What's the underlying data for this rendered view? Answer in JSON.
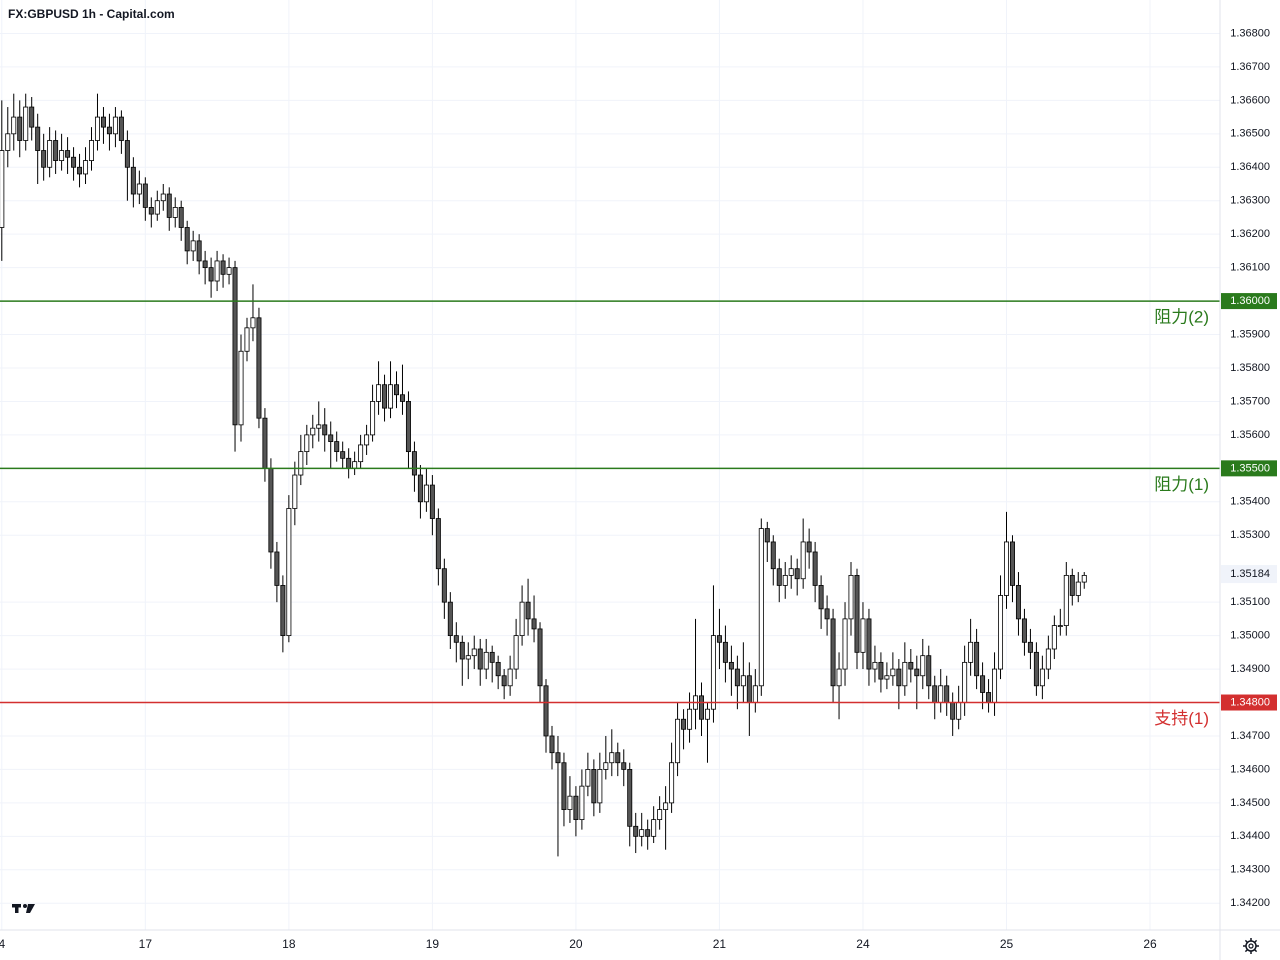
{
  "chart_data": {
    "type": "candlestick",
    "title": "FX:GBPUSD 1h - Capital.com",
    "up_color": "#ffffff",
    "down_color": "#555555",
    "wick_color": "#000000",
    "grid": true,
    "ylim": [
      1.3412,
      1.369
    ],
    "yticks": [
      {
        "value": 1.368,
        "label": "1.36800"
      },
      {
        "value": 1.367,
        "label": "1.36700"
      },
      {
        "value": 1.366,
        "label": "1.36600"
      },
      {
        "value": 1.365,
        "label": "1.36500"
      },
      {
        "value": 1.364,
        "label": "1.36400"
      },
      {
        "value": 1.363,
        "label": "1.36300"
      },
      {
        "value": 1.362,
        "label": "1.36200"
      },
      {
        "value": 1.361,
        "label": "1.36100"
      },
      {
        "value": 1.359,
        "label": "1.35900"
      },
      {
        "value": 1.358,
        "label": "1.35800"
      },
      {
        "value": 1.357,
        "label": "1.35700"
      },
      {
        "value": 1.356,
        "label": "1.35600"
      },
      {
        "value": 1.354,
        "label": "1.35400"
      },
      {
        "value": 1.353,
        "label": "1.35300"
      },
      {
        "value": 1.351,
        "label": "1.35100"
      },
      {
        "value": 1.35,
        "label": "1.35000"
      },
      {
        "value": 1.349,
        "label": "1.34900"
      },
      {
        "value": 1.347,
        "label": "1.34700"
      },
      {
        "value": 1.346,
        "label": "1.34600"
      },
      {
        "value": 1.345,
        "label": "1.34500"
      },
      {
        "value": 1.344,
        "label": "1.34400"
      },
      {
        "value": 1.343,
        "label": "1.34300"
      },
      {
        "value": 1.342,
        "label": "1.34200"
      }
    ],
    "xlim": [
      -0.3,
      203.7
    ],
    "xticks": [
      {
        "value": 0,
        "label": "4"
      },
      {
        "value": 24,
        "label": "17"
      },
      {
        "value": 48,
        "label": "18"
      },
      {
        "value": 72,
        "label": "19"
      },
      {
        "value": 96,
        "label": "20"
      },
      {
        "value": 120,
        "label": "21"
      },
      {
        "value": 144,
        "label": "24"
      },
      {
        "value": 168,
        "label": "25"
      },
      {
        "value": 192,
        "label": "26"
      }
    ],
    "levels": [
      {
        "value": 1.36,
        "price_label": "1.36000",
        "label": "阻力(2)",
        "color": "#2a7a1c"
      },
      {
        "value": 1.355,
        "price_label": "1.35500",
        "label": "阻力(1)",
        "color": "#2a7a1c"
      },
      {
        "value": 1.348,
        "price_label": "1.34800",
        "label": "支持(1)",
        "color": "#d32f2f"
      }
    ],
    "last_price": 1.35184,
    "ohlc": [
      [
        1.3622,
        1.366,
        1.3612,
        1.3645
      ],
      [
        1.3645,
        1.3658,
        1.364,
        1.365
      ],
      [
        1.365,
        1.3662,
        1.3645,
        1.3655
      ],
      [
        1.3655,
        1.366,
        1.3643,
        1.3648
      ],
      [
        1.3648,
        1.3662,
        1.3645,
        1.3658
      ],
      [
        1.3658,
        1.3661,
        1.3648,
        1.3652
      ],
      [
        1.3652,
        1.3656,
        1.3635,
        1.3645
      ],
      [
        1.3645,
        1.365,
        1.3636,
        1.364
      ],
      [
        1.364,
        1.3652,
        1.3637,
        1.3648
      ],
      [
        1.3648,
        1.3651,
        1.3638,
        1.3642
      ],
      [
        1.3642,
        1.365,
        1.3639,
        1.3645
      ],
      [
        1.3645,
        1.3649,
        1.3638,
        1.3643
      ],
      [
        1.3643,
        1.3646,
        1.3636,
        1.364
      ],
      [
        1.364,
        1.3644,
        1.3634,
        1.3638
      ],
      [
        1.3638,
        1.3646,
        1.3635,
        1.3642
      ],
      [
        1.3642,
        1.3652,
        1.3639,
        1.3648
      ],
      [
        1.3648,
        1.3662,
        1.3645,
        1.3655
      ],
      [
        1.3655,
        1.3658,
        1.3647,
        1.3652
      ],
      [
        1.3652,
        1.3656,
        1.3645,
        1.365
      ],
      [
        1.365,
        1.3658,
        1.3646,
        1.3655
      ],
      [
        1.3655,
        1.3657,
        1.3644,
        1.3648
      ],
      [
        1.3648,
        1.3651,
        1.363,
        1.364
      ],
      [
        1.364,
        1.3643,
        1.3628,
        1.3632
      ],
      [
        1.3632,
        1.3639,
        1.3629,
        1.3635
      ],
      [
        1.3635,
        1.3637,
        1.3624,
        1.3628
      ],
      [
        1.3628,
        1.3631,
        1.3622,
        1.3626
      ],
      [
        1.3626,
        1.3633,
        1.3624,
        1.363
      ],
      [
        1.363,
        1.3635,
        1.3627,
        1.3632
      ],
      [
        1.3632,
        1.3634,
        1.3621,
        1.3625
      ],
      [
        1.3625,
        1.3631,
        1.3622,
        1.3628
      ],
      [
        1.3628,
        1.363,
        1.3618,
        1.3622
      ],
      [
        1.3622,
        1.3624,
        1.3611,
        1.3615
      ],
      [
        1.3615,
        1.3621,
        1.3612,
        1.3618
      ],
      [
        1.3618,
        1.362,
        1.3608,
        1.3612
      ],
      [
        1.3612,
        1.3615,
        1.3605,
        1.361
      ],
      [
        1.361,
        1.3613,
        1.3601,
        1.3606
      ],
      [
        1.3606,
        1.3615,
        1.3603,
        1.3612
      ],
      [
        1.3612,
        1.3614,
        1.3604,
        1.3608
      ],
      [
        1.3608,
        1.3613,
        1.3605,
        1.361
      ],
      [
        1.361,
        1.3612,
        1.3555,
        1.3563
      ],
      [
        1.3563,
        1.359,
        1.3558,
        1.3585
      ],
      [
        1.3585,
        1.3595,
        1.3582,
        1.3592
      ],
      [
        1.3592,
        1.3605,
        1.3588,
        1.3595
      ],
      [
        1.3595,
        1.3598,
        1.3562,
        1.3565
      ],
      [
        1.3565,
        1.3568,
        1.3546,
        1.355
      ],
      [
        1.355,
        1.3553,
        1.352,
        1.3525
      ],
      [
        1.3525,
        1.3528,
        1.351,
        1.3515
      ],
      [
        1.3515,
        1.3518,
        1.3495,
        1.35
      ],
      [
        1.35,
        1.3542,
        1.3498,
        1.3538
      ],
      [
        1.3538,
        1.3552,
        1.3533,
        1.3548
      ],
      [
        1.3548,
        1.356,
        1.3545,
        1.3555
      ],
      [
        1.3555,
        1.3563,
        1.3551,
        1.356
      ],
      [
        1.356,
        1.3566,
        1.3556,
        1.3562
      ],
      [
        1.3562,
        1.357,
        1.3558,
        1.3563
      ],
      [
        1.3563,
        1.3568,
        1.3555,
        1.356
      ],
      [
        1.356,
        1.3564,
        1.355,
        1.3558
      ],
      [
        1.3558,
        1.3561,
        1.3552,
        1.3555
      ],
      [
        1.3555,
        1.3558,
        1.355,
        1.3553
      ],
      [
        1.3553,
        1.3556,
        1.3547,
        1.355
      ],
      [
        1.355,
        1.3555,
        1.3548,
        1.3552
      ],
      [
        1.3552,
        1.356,
        1.355,
        1.3557
      ],
      [
        1.3557,
        1.3563,
        1.3554,
        1.356
      ],
      [
        1.356,
        1.3575,
        1.3558,
        1.357
      ],
      [
        1.357,
        1.3582,
        1.3566,
        1.3575
      ],
      [
        1.3575,
        1.3578,
        1.3564,
        1.3568
      ],
      [
        1.3568,
        1.3582,
        1.3565,
        1.3575
      ],
      [
        1.3575,
        1.3579,
        1.3568,
        1.3572
      ],
      [
        1.3572,
        1.3581,
        1.3566,
        1.357
      ],
      [
        1.357,
        1.3573,
        1.355,
        1.3555
      ],
      [
        1.3555,
        1.3558,
        1.3543,
        1.3548
      ],
      [
        1.3548,
        1.3551,
        1.3535,
        1.354
      ],
      [
        1.354,
        1.355,
        1.3537,
        1.3545
      ],
      [
        1.3545,
        1.3548,
        1.353,
        1.3535
      ],
      [
        1.3535,
        1.3538,
        1.3515,
        1.352
      ],
      [
        1.352,
        1.3523,
        1.3505,
        1.351
      ],
      [
        1.351,
        1.3513,
        1.3496,
        1.35
      ],
      [
        1.35,
        1.3504,
        1.3492,
        1.3498
      ],
      [
        1.3498,
        1.35,
        1.3485,
        1.3493
      ],
      [
        1.3493,
        1.3498,
        1.3487,
        1.3494
      ],
      [
        1.3494,
        1.35,
        1.349,
        1.3496
      ],
      [
        1.3496,
        1.3499,
        1.3485,
        1.349
      ],
      [
        1.349,
        1.3499,
        1.3487,
        1.3495
      ],
      [
        1.3495,
        1.3497,
        1.3486,
        1.3492
      ],
      [
        1.3492,
        1.3494,
        1.3484,
        1.3488
      ],
      [
        1.3488,
        1.349,
        1.3481,
        1.3485
      ],
      [
        1.3485,
        1.3494,
        1.3482,
        1.349
      ],
      [
        1.349,
        1.3505,
        1.3487,
        1.35
      ],
      [
        1.35,
        1.3515,
        1.3497,
        1.351
      ],
      [
        1.351,
        1.3517,
        1.35,
        1.3505
      ],
      [
        1.3505,
        1.3512,
        1.3498,
        1.3502
      ],
      [
        1.3502,
        1.3504,
        1.348,
        1.3485
      ],
      [
        1.3485,
        1.3487,
        1.3465,
        1.347
      ],
      [
        1.347,
        1.3473,
        1.346,
        1.3465
      ],
      [
        1.3465,
        1.347,
        1.3434,
        1.3462
      ],
      [
        1.3462,
        1.3465,
        1.3443,
        1.3448
      ],
      [
        1.3448,
        1.3458,
        1.3444,
        1.3452
      ],
      [
        1.3452,
        1.3455,
        1.344,
        1.3445
      ],
      [
        1.3445,
        1.346,
        1.3442,
        1.3455
      ],
      [
        1.3455,
        1.3465,
        1.3452,
        1.346
      ],
      [
        1.346,
        1.3463,
        1.3446,
        1.345
      ],
      [
        1.345,
        1.3465,
        1.3447,
        1.346
      ],
      [
        1.346,
        1.347,
        1.3457,
        1.3462
      ],
      [
        1.3462,
        1.3472,
        1.3458,
        1.3465
      ],
      [
        1.3465,
        1.3468,
        1.3458,
        1.3462
      ],
      [
        1.3462,
        1.3466,
        1.3455,
        1.346
      ],
      [
        1.346,
        1.3462,
        1.3437,
        1.3443
      ],
      [
        1.3443,
        1.3447,
        1.3435,
        1.344
      ],
      [
        1.344,
        1.3447,
        1.3437,
        1.3442
      ],
      [
        1.3442,
        1.3445,
        1.3436,
        1.344
      ],
      [
        1.344,
        1.3449,
        1.3438,
        1.3445
      ],
      [
        1.3445,
        1.3452,
        1.3442,
        1.3448
      ],
      [
        1.3448,
        1.3455,
        1.3436,
        1.345
      ],
      [
        1.345,
        1.3468,
        1.3447,
        1.3462
      ],
      [
        1.3462,
        1.348,
        1.3458,
        1.3475
      ],
      [
        1.3475,
        1.3478,
        1.3466,
        1.3472
      ],
      [
        1.3472,
        1.3483,
        1.3468,
        1.3478
      ],
      [
        1.3478,
        1.3505,
        1.3472,
        1.3482
      ],
      [
        1.3482,
        1.3486,
        1.347,
        1.3475
      ],
      [
        1.3475,
        1.348,
        1.3462,
        1.3478
      ],
      [
        1.3478,
        1.3515,
        1.3474,
        1.35
      ],
      [
        1.35,
        1.3508,
        1.349,
        1.3498
      ],
      [
        1.3498,
        1.3503,
        1.3486,
        1.3492
      ],
      [
        1.3492,
        1.3497,
        1.3482,
        1.349
      ],
      [
        1.349,
        1.3494,
        1.3478,
        1.3485
      ],
      [
        1.3485,
        1.3498,
        1.348,
        1.3488
      ],
      [
        1.3488,
        1.3492,
        1.347,
        1.348
      ],
      [
        1.348,
        1.349,
        1.3477,
        1.3485
      ],
      [
        1.3485,
        1.3535,
        1.3482,
        1.3532
      ],
      [
        1.3532,
        1.3534,
        1.3522,
        1.3528
      ],
      [
        1.3528,
        1.353,
        1.3515,
        1.352
      ],
      [
        1.352,
        1.3523,
        1.351,
        1.3515
      ],
      [
        1.3515,
        1.3522,
        1.3511,
        1.3518
      ],
      [
        1.3518,
        1.3524,
        1.3514,
        1.352
      ],
      [
        1.352,
        1.3523,
        1.3512,
        1.3517
      ],
      [
        1.3517,
        1.3535,
        1.3514,
        1.3528
      ],
      [
        1.3528,
        1.3532,
        1.352,
        1.3525
      ],
      [
        1.3525,
        1.3528,
        1.351,
        1.3515
      ],
      [
        1.3515,
        1.3518,
        1.3502,
        1.3508
      ],
      [
        1.3508,
        1.3512,
        1.35,
        1.3505
      ],
      [
        1.3505,
        1.3508,
        1.348,
        1.3485
      ],
      [
        1.3485,
        1.3495,
        1.3475,
        1.349
      ],
      [
        1.349,
        1.351,
        1.3485,
        1.3505
      ],
      [
        1.3505,
        1.3522,
        1.35,
        1.3518
      ],
      [
        1.3518,
        1.352,
        1.349,
        1.3495
      ],
      [
        1.3495,
        1.351,
        1.349,
        1.3505
      ],
      [
        1.3505,
        1.3508,
        1.3485,
        1.349
      ],
      [
        1.349,
        1.3497,
        1.3486,
        1.3492
      ],
      [
        1.3492,
        1.3495,
        1.3483,
        1.3487
      ],
      [
        1.3487,
        1.3492,
        1.3484,
        1.3488
      ],
      [
        1.3488,
        1.3495,
        1.3485,
        1.349
      ],
      [
        1.349,
        1.3493,
        1.3478,
        1.3485
      ],
      [
        1.3485,
        1.3498,
        1.3482,
        1.3492
      ],
      [
        1.3492,
        1.3496,
        1.3486,
        1.349
      ],
      [
        1.349,
        1.3494,
        1.3478,
        1.3488
      ],
      [
        1.3488,
        1.3499,
        1.3484,
        1.3494
      ],
      [
        1.3494,
        1.3497,
        1.3481,
        1.3485
      ],
      [
        1.3485,
        1.3488,
        1.3475,
        1.348
      ],
      [
        1.348,
        1.349,
        1.3477,
        1.3485
      ],
      [
        1.3485,
        1.3488,
        1.3476,
        1.348
      ],
      [
        1.348,
        1.3483,
        1.347,
        1.3475
      ],
      [
        1.3475,
        1.3485,
        1.3472,
        1.348
      ],
      [
        1.348,
        1.3497,
        1.3476,
        1.3492
      ],
      [
        1.3492,
        1.3505,
        1.3488,
        1.3498
      ],
      [
        1.3498,
        1.3502,
        1.3484,
        1.3488
      ],
      [
        1.3488,
        1.3492,
        1.3478,
        1.3483
      ],
      [
        1.3483,
        1.3487,
        1.3477,
        1.348
      ],
      [
        1.348,
        1.3495,
        1.3476,
        1.349
      ],
      [
        1.349,
        1.3518,
        1.3487,
        1.3512
      ],
      [
        1.3512,
        1.3537,
        1.3508,
        1.3528
      ],
      [
        1.3528,
        1.353,
        1.351,
        1.3515
      ],
      [
        1.3515,
        1.3519,
        1.35,
        1.3505
      ],
      [
        1.3505,
        1.3508,
        1.3494,
        1.3498
      ],
      [
        1.3498,
        1.3502,
        1.349,
        1.3495
      ],
      [
        1.3495,
        1.3498,
        1.3482,
        1.3485
      ],
      [
        1.3485,
        1.3494,
        1.3481,
        1.349
      ],
      [
        1.349,
        1.35,
        1.3487,
        1.3496
      ],
      [
        1.3496,
        1.3506,
        1.3493,
        1.3503
      ],
      [
        1.3503,
        1.3508,
        1.35,
        1.3503
      ],
      [
        1.3503,
        1.3522,
        1.35,
        1.3518
      ],
      [
        1.3518,
        1.352,
        1.3509,
        1.3512
      ],
      [
        1.3512,
        1.3519,
        1.351,
        1.3516
      ],
      [
        1.3516,
        1.3519,
        1.3514,
        1.3518
      ]
    ]
  }
}
